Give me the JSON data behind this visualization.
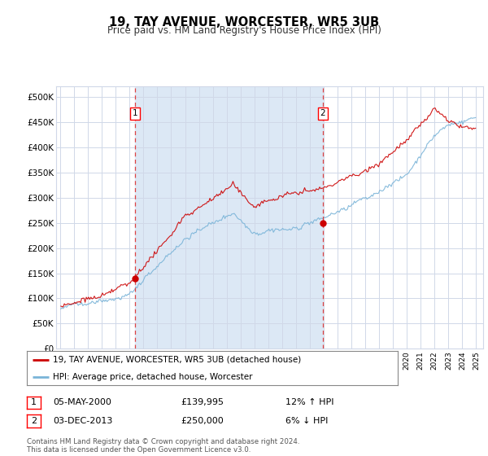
{
  "title": "19, TAY AVENUE, WORCESTER, WR5 3UB",
  "subtitle": "Price paid vs. HM Land Registry's House Price Index (HPI)",
  "background_color": "#ffffff",
  "plot_bg_color": "#ffffff",
  "hpi_color": "#7ab4d8",
  "price_color": "#cc0000",
  "shade_color": "#dce8f5",
  "vline_color": "#dd4444",
  "grid_color": "#d0d8e8",
  "legend_line1": "19, TAY AVENUE, WORCESTER, WR5 3UB (detached house)",
  "legend_line2": "HPI: Average price, detached house, Worcester",
  "table_row1": [
    "1",
    "05-MAY-2000",
    "£139,995",
    "12% ↑ HPI"
  ],
  "table_row2": [
    "2",
    "03-DEC-2013",
    "£250,000",
    "6% ↓ HPI"
  ],
  "footer": "Contains HM Land Registry data © Crown copyright and database right 2024.\nThis data is licensed under the Open Government Licence v3.0.",
  "sale1_x": 2000.37,
  "sale1_y": 139995,
  "sale2_x": 2013.92,
  "sale2_y": 250000,
  "ylim": [
    0,
    520000
  ],
  "yticks": [
    0,
    50000,
    100000,
    150000,
    200000,
    250000,
    300000,
    350000,
    400000,
    450000,
    500000
  ],
  "ytick_labels": [
    "£0",
    "£50K",
    "£100K",
    "£150K",
    "£200K",
    "£250K",
    "£300K",
    "£350K",
    "£400K",
    "£450K",
    "£500K"
  ],
  "xlim_left": 1994.7,
  "xlim_right": 2025.5
}
